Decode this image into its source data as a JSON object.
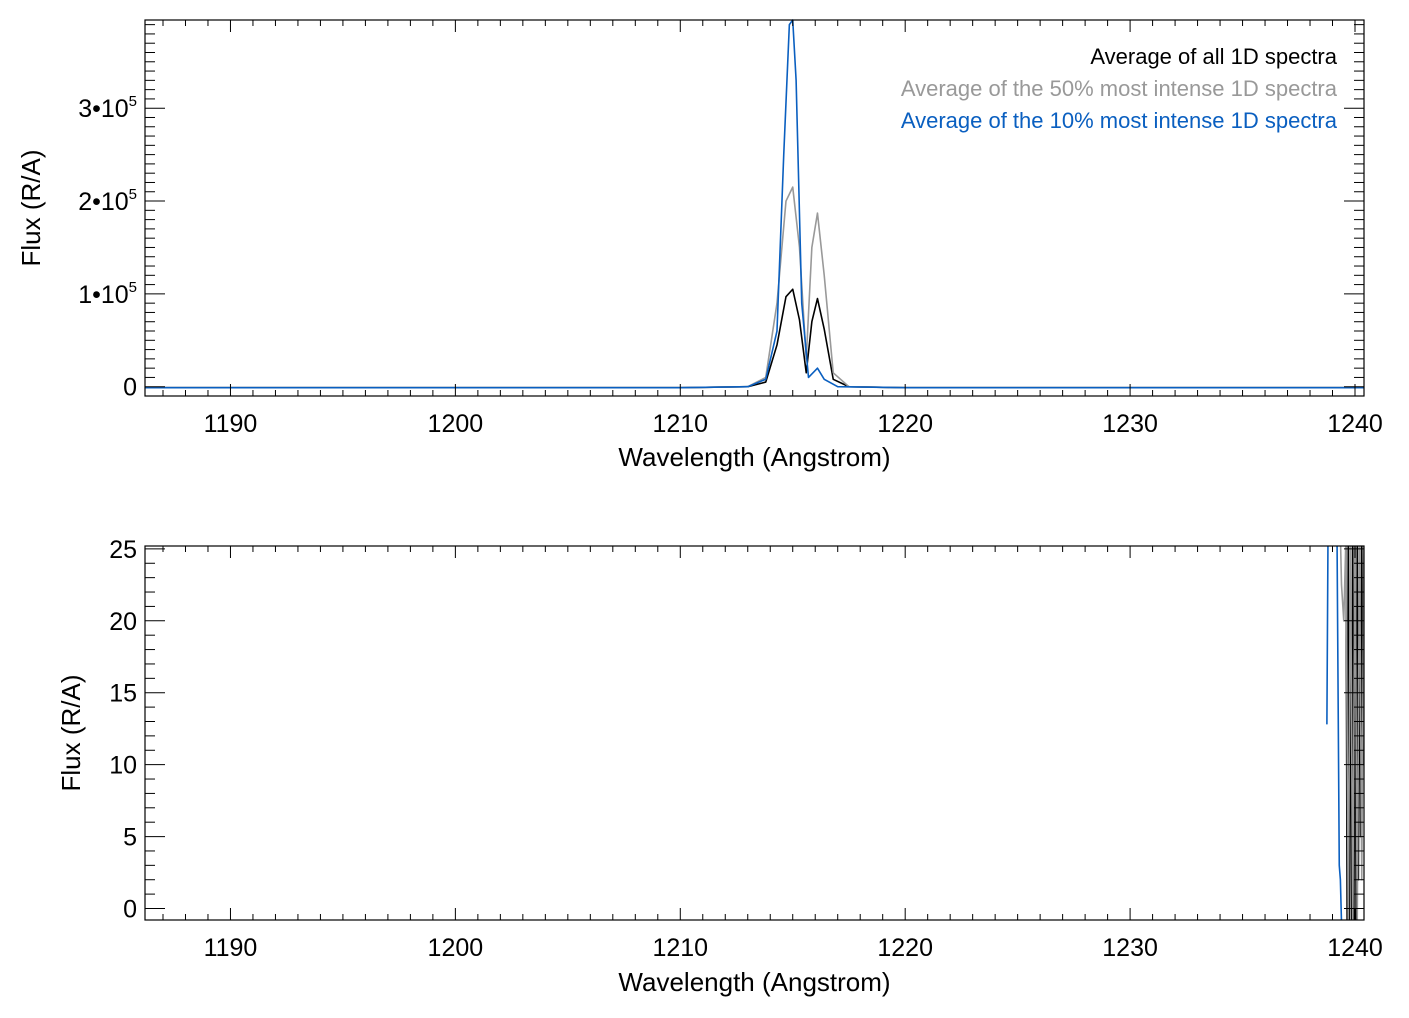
{
  "chart_data": [
    {
      "type": "line",
      "xlabel": "Wavelength (Angstrom)",
      "ylabel": "Flux (R/A)",
      "xlim": [
        1186.2,
        1240.4
      ],
      "ylim": [
        -10000,
        395000
      ],
      "x_ticks": [
        1190,
        1200,
        1210,
        1220,
        1230,
        1240
      ],
      "x_tick_labels": [
        "1190",
        "1200",
        "1210",
        "1220",
        "1230",
        "1240"
      ],
      "y_ticks": [
        0,
        100000,
        200000,
        300000
      ],
      "y_tick_labels": [
        {
          "mantissa": "0",
          "sup": ""
        },
        {
          "mantissa": "1•10",
          "sup": "5"
        },
        {
          "mantissa": "2•10",
          "sup": "5"
        },
        {
          "mantissa": "3•10",
          "sup": "5"
        }
      ],
      "series": [
        {
          "name": "Average of all 1D spectra",
          "color": "#000000",
          "x": [
            1186.2,
            1190,
            1200,
            1210,
            1213.0,
            1213.8,
            1214.3,
            1214.7,
            1215.0,
            1215.3,
            1215.6,
            1215.85,
            1216.1,
            1216.4,
            1216.8,
            1217.5,
            1220,
            1230,
            1240.4
          ],
          "y": [
            -1000,
            -1000,
            -1000,
            -1000,
            0,
            5000,
            45000,
            97000,
            105000,
            72000,
            15000,
            70000,
            95000,
            62000,
            8000,
            0,
            -1000,
            -1000,
            -1000
          ]
        },
        {
          "name": "Average of the 50% most intense 1D spectra",
          "color": "#999999",
          "x": [
            1186.2,
            1190,
            1200,
            1210,
            1213.0,
            1213.8,
            1214.3,
            1214.7,
            1215.0,
            1215.3,
            1215.6,
            1215.85,
            1216.1,
            1216.4,
            1216.8,
            1217.5,
            1220,
            1230,
            1240.4
          ],
          "y": [
            -1000,
            -1000,
            -1000,
            -1000,
            0,
            10000,
            90000,
            200000,
            215000,
            150000,
            30000,
            150000,
            187000,
            120000,
            15000,
            0,
            -1000,
            -1000,
            -1000
          ]
        },
        {
          "name": "Average of the 10% most intense 1D spectra",
          "color": "#0a5fc0",
          "x": [
            1186.2,
            1190,
            1200,
            1210,
            1213.0,
            1213.8,
            1214.3,
            1214.6,
            1214.85,
            1215.0,
            1215.15,
            1215.4,
            1215.7,
            1215.9,
            1216.1,
            1216.4,
            1217.0,
            1220,
            1230,
            1240.4
          ],
          "y": [
            -1000,
            -1000,
            -1000,
            -1000,
            0,
            8000,
            60000,
            250000,
            390000,
            395000,
            330000,
            90000,
            10000,
            15000,
            20000,
            8000,
            0,
            -1000,
            -1000,
            -1000
          ]
        }
      ]
    },
    {
      "type": "line",
      "xlabel": "Wavelength (Angstrom)",
      "ylabel": "Flux (R/A)",
      "xlim": [
        1186.2,
        1240.4
      ],
      "ylim": [
        -0.8,
        25.2
      ],
      "x_ticks": [
        1190,
        1200,
        1210,
        1220,
        1230,
        1240
      ],
      "x_tick_labels": [
        "1190",
        "1200",
        "1210",
        "1220",
        "1230",
        "1240"
      ],
      "y_ticks": [
        0,
        5,
        10,
        15,
        20,
        25
      ],
      "y_tick_labels": [
        "0",
        "5",
        "10",
        "15",
        "20",
        "25"
      ],
      "series": [
        {
          "name": "Average of all 1D spectra",
          "color": "#000000",
          "x": [
            1239.6,
            1239.65,
            1239.7,
            1239.75,
            1239.8,
            1239.85,
            1239.9,
            1239.95,
            1240.0,
            1240.05,
            1240.1,
            1240.15,
            1240.2,
            1240.25,
            1240.3,
            1240.35,
            1240.4
          ],
          "y": [
            26,
            -1,
            26,
            -1,
            26,
            -1,
            26,
            -1,
            26,
            -1,
            26,
            2,
            26,
            5,
            26,
            10,
            17
          ]
        },
        {
          "name": "Average of the 50% most intense 1D spectra",
          "color": "#999999",
          "x": [
            1239.35,
            1239.4,
            1239.5,
            1239.6,
            1239.7,
            1239.8,
            1239.9,
            1240.0,
            1240.1,
            1240.2,
            1240.3,
            1240.4
          ],
          "y": [
            26,
            22.5,
            20,
            26,
            -1,
            26,
            -1,
            26,
            -1,
            26,
            2,
            26
          ]
        },
        {
          "name": "Average of the 10% most intense 1D spectra",
          "color": "#0a5fc0",
          "x": [
            1238.75,
            1238.8,
            1238.85,
            1239.15,
            1239.2,
            1239.3,
            1239.35,
            1239.4,
            1239.45
          ],
          "y": [
            12.8,
            26,
            26,
            26,
            26,
            3,
            2,
            -1,
            -1
          ]
        }
      ]
    }
  ]
}
